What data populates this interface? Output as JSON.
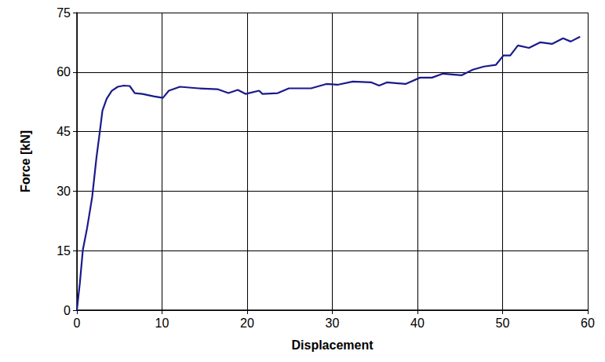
{
  "chart_data": {
    "type": "line",
    "x_label": "Displacement",
    "y_label": "Force [kN]",
    "x": [
      0,
      0.35,
      0.7,
      1.2,
      1.8,
      2.3,
      2.6,
      3.0,
      3.5,
      4.1,
      4.8,
      5.5,
      6.2,
      6.8,
      7.7,
      9.0,
      10.1,
      10.8,
      12.1,
      14.3,
      16.5,
      17.8,
      18.9,
      19.8,
      21.4,
      21.8,
      23.6,
      24.9,
      27.5,
      29.3,
      30.6,
      32.4,
      34.6,
      35.5,
      36.4,
      38.6,
      40.3,
      41.7,
      43.0,
      45.2,
      46.5,
      47.8,
      49.2,
      50.1,
      50.9,
      51.8,
      53.1,
      54.4,
      55.8,
      57.1,
      58.0,
      59.1
    ],
    "values": [
      0,
      6.9,
      15.2,
      20.7,
      28.6,
      38.5,
      43.4,
      50.3,
      53.3,
      55.3,
      56.3,
      56.6,
      56.5,
      54.7,
      54.5,
      53.9,
      53.5,
      55.3,
      56.3,
      55.9,
      55.7,
      54.7,
      55.5,
      54.5,
      55.3,
      54.5,
      54.7,
      55.9,
      55.9,
      57.0,
      56.8,
      57.6,
      57.4,
      56.6,
      57.4,
      57.0,
      58.6,
      58.6,
      59.6,
      59.2,
      60.6,
      61.4,
      61.8,
      64.2,
      64.2,
      66.7,
      66.1,
      67.5,
      67.1,
      68.5,
      67.7,
      68.9
    ],
    "color": "#1a1a8c",
    "xlim": [
      0,
      60
    ],
    "xticks": [
      0,
      10,
      20,
      30,
      40,
      50,
      60
    ],
    "ylim": [
      0,
      75
    ],
    "yticks": [
      0,
      15,
      30,
      45,
      60,
      75
    ],
    "grid": true
  }
}
